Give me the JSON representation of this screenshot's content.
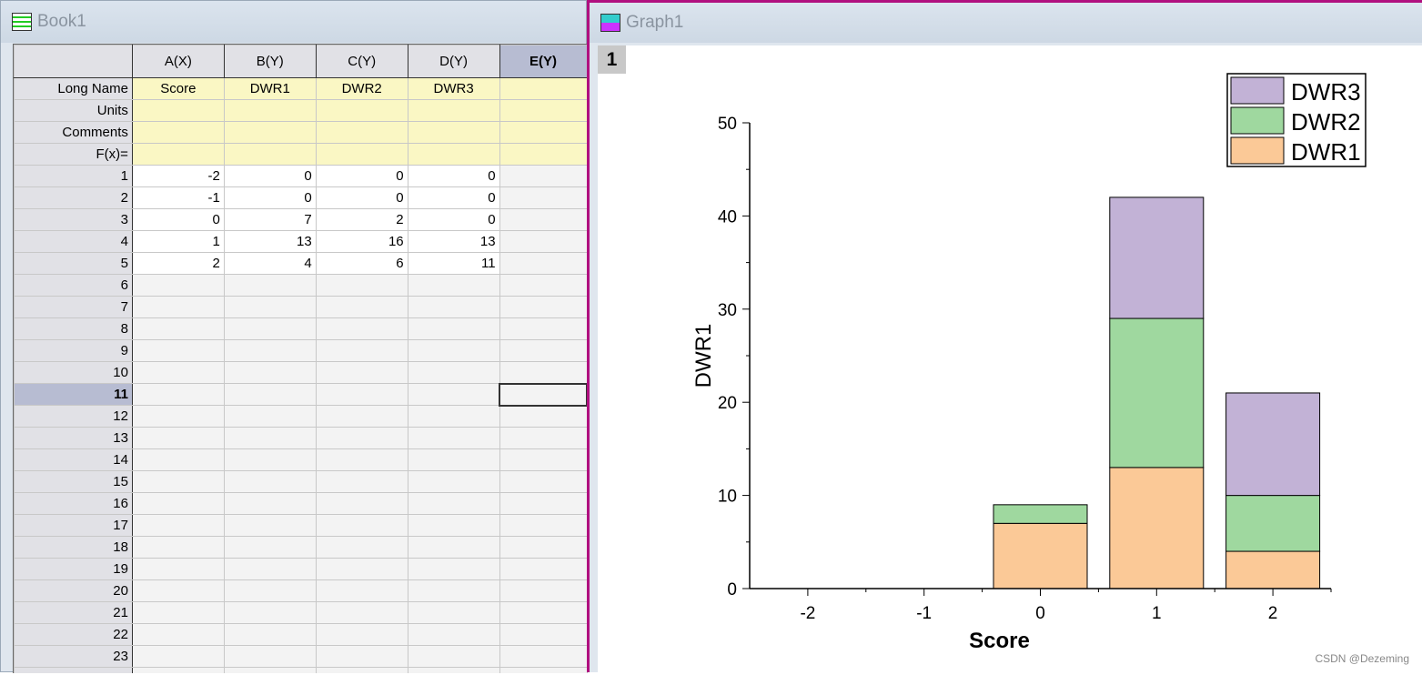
{
  "book": {
    "title": "Book1",
    "columns": [
      "A(X)",
      "B(Y)",
      "C(Y)",
      "D(Y)",
      "E(Y)"
    ],
    "label_rows": [
      {
        "label": "Long Name",
        "values": [
          "Score",
          "DWR1",
          "DWR2",
          "DWR3",
          ""
        ]
      },
      {
        "label": "Units",
        "values": [
          "",
          "",
          "",
          "",
          ""
        ]
      },
      {
        "label": "Comments",
        "values": [
          "",
          "",
          "",
          "",
          ""
        ]
      },
      {
        "label": "F(x)=",
        "values": [
          "",
          "",
          "",
          "",
          ""
        ]
      }
    ],
    "rows": [
      [
        "-2",
        "0",
        "0",
        "0"
      ],
      [
        "-1",
        "0",
        "0",
        "0"
      ],
      [
        "0",
        "7",
        "2",
        "0"
      ],
      [
        "1",
        "13",
        "16",
        "13"
      ],
      [
        "2",
        "4",
        "6",
        "11"
      ]
    ],
    "row_count": 24,
    "selected_row": 11
  },
  "graph": {
    "title": "Graph1",
    "layer": "1",
    "watermark": "CSDN @Dezeming"
  },
  "chart_data": {
    "type": "bar",
    "stacked": true,
    "categories": [
      -2,
      -1,
      0,
      1,
      2
    ],
    "series": [
      {
        "name": "DWR1",
        "values": [
          0,
          0,
          7,
          13,
          4
        ],
        "color": "#fbc997"
      },
      {
        "name": "DWR2",
        "values": [
          0,
          0,
          2,
          16,
          6
        ],
        "color": "#9fd89f"
      },
      {
        "name": "DWR3",
        "values": [
          0,
          0,
          0,
          13,
          11
        ],
        "color": "#c2b2d6"
      }
    ],
    "xlabel": "Score",
    "ylabel": "DWR1",
    "ylim": [
      0,
      50
    ],
    "xlim": [
      -2.5,
      2.5
    ],
    "yticks": [
      0,
      10,
      20,
      30,
      40,
      50
    ],
    "legend": "top-right",
    "grid": false
  }
}
